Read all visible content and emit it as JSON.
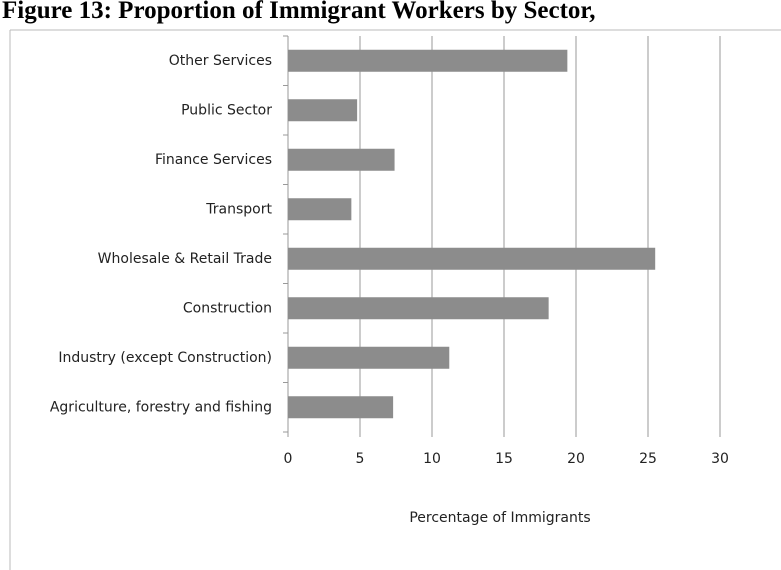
{
  "chart_data": {
    "type": "barh",
    "title": "Figure 13: Proportion of Immigrant Workers by Sector,",
    "x_label": "Percentage of Immigrants",
    "categories": [
      "Agriculture, forestry and fishing",
      "Industry (except Construction)",
      "Construction",
      "Wholesale & Retail Trade",
      "Transport",
      "Finance Services",
      "Public Sector",
      "Other Services"
    ],
    "values": [
      7.3,
      11.2,
      18.1,
      25.5,
      4.4,
      7.4,
      4.8,
      19.4
    ],
    "color": "#8c8c8c",
    "xlim": [
      0,
      30
    ],
    "xticks": [
      0,
      5,
      10,
      15,
      20,
      25,
      30
    ],
    "grid": true
  }
}
